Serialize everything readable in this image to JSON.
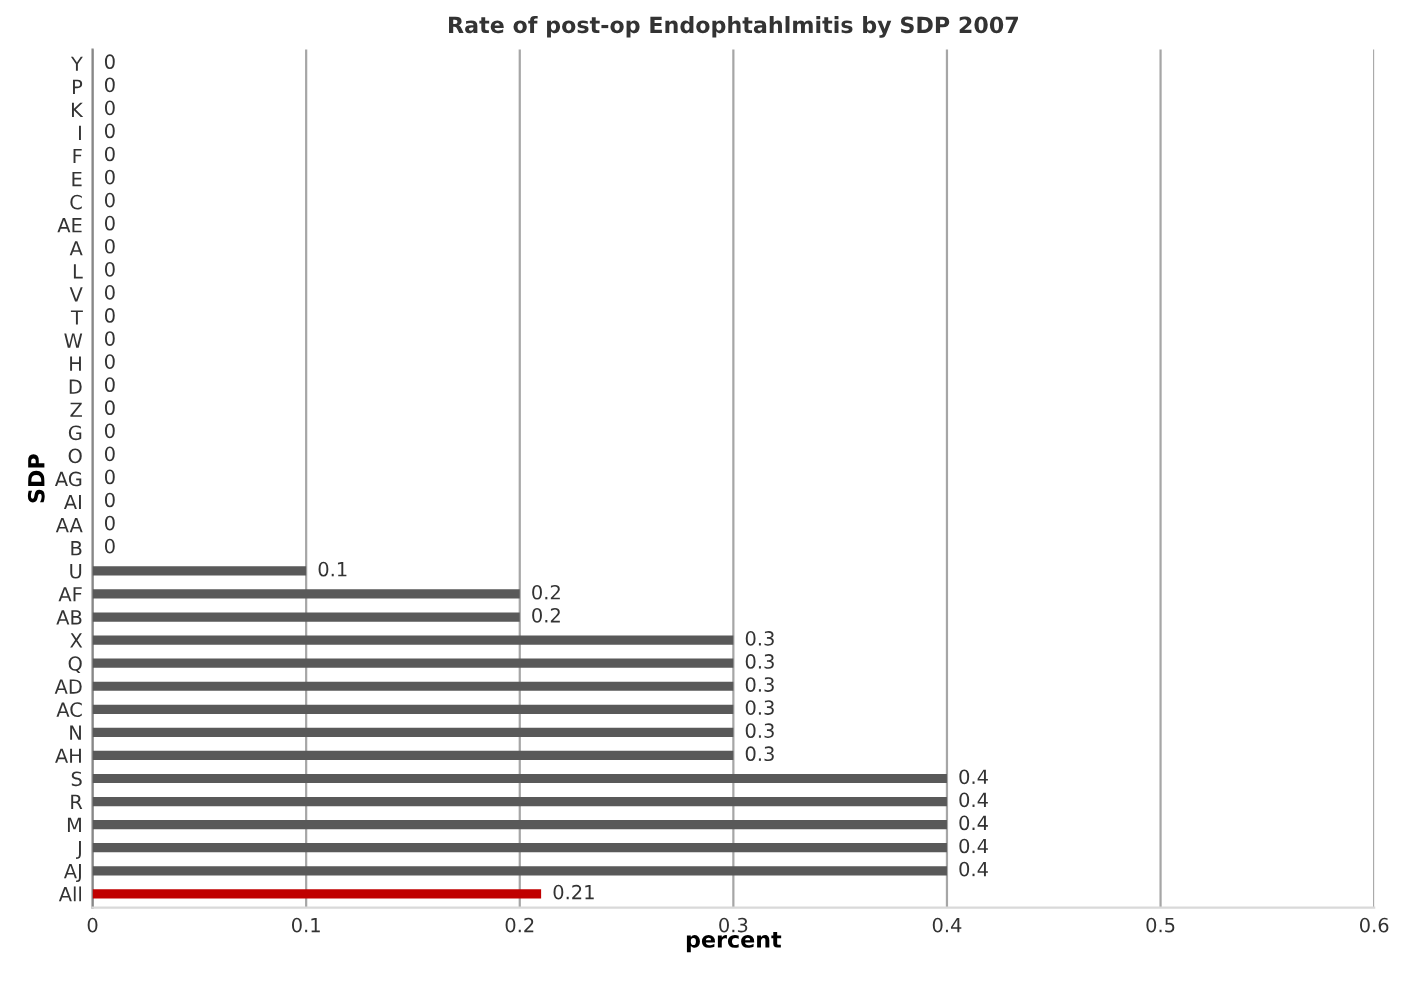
{
  "chart_data": {
    "type": "bar",
    "orientation": "horizontal",
    "title": "Rate of post-op Endophtahlmitis by SDP 2007",
    "xlabel": "percent",
    "ylabel": "SDP",
    "categories": [
      "Y",
      "P",
      "K",
      "I",
      "F",
      "E",
      "C",
      "AE",
      "A",
      "L",
      "V",
      "T",
      "W",
      "H",
      "D",
      "Z",
      "G",
      "O",
      "AG",
      "AI",
      "AA",
      "B",
      "U",
      "AF",
      "AB",
      "X",
      "Q",
      "AD",
      "AC",
      "N",
      "AH",
      "S",
      "R",
      "M",
      "J",
      "AJ",
      "All"
    ],
    "values": [
      0,
      0,
      0,
      0,
      0,
      0,
      0,
      0,
      0,
      0,
      0,
      0,
      0,
      0,
      0,
      0,
      0,
      0,
      0,
      0,
      0,
      0,
      0.1,
      0.2,
      0.2,
      0.3,
      0.3,
      0.3,
      0.3,
      0.3,
      0.3,
      0.4,
      0.4,
      0.4,
      0.4,
      0.4,
      0.21
    ],
    "colors": [
      "#595959",
      "#595959",
      "#595959",
      "#595959",
      "#595959",
      "#595959",
      "#595959",
      "#595959",
      "#595959",
      "#595959",
      "#595959",
      "#595959",
      "#595959",
      "#595959",
      "#595959",
      "#595959",
      "#595959",
      "#595959",
      "#595959",
      "#595959",
      "#595959",
      "#595959",
      "#595959",
      "#595959",
      "#595959",
      "#595959",
      "#595959",
      "#595959",
      "#595959",
      "#595959",
      "#595959",
      "#595959",
      "#595959",
      "#595959",
      "#595959",
      "#595959",
      "#c00000"
    ],
    "xlim": [
      0,
      0.6
    ],
    "xticks": [
      0,
      0.1,
      0.2,
      0.3,
      0.4,
      0.5,
      0.6
    ],
    "grid": "x",
    "data_labels": true,
    "legend": false
  }
}
